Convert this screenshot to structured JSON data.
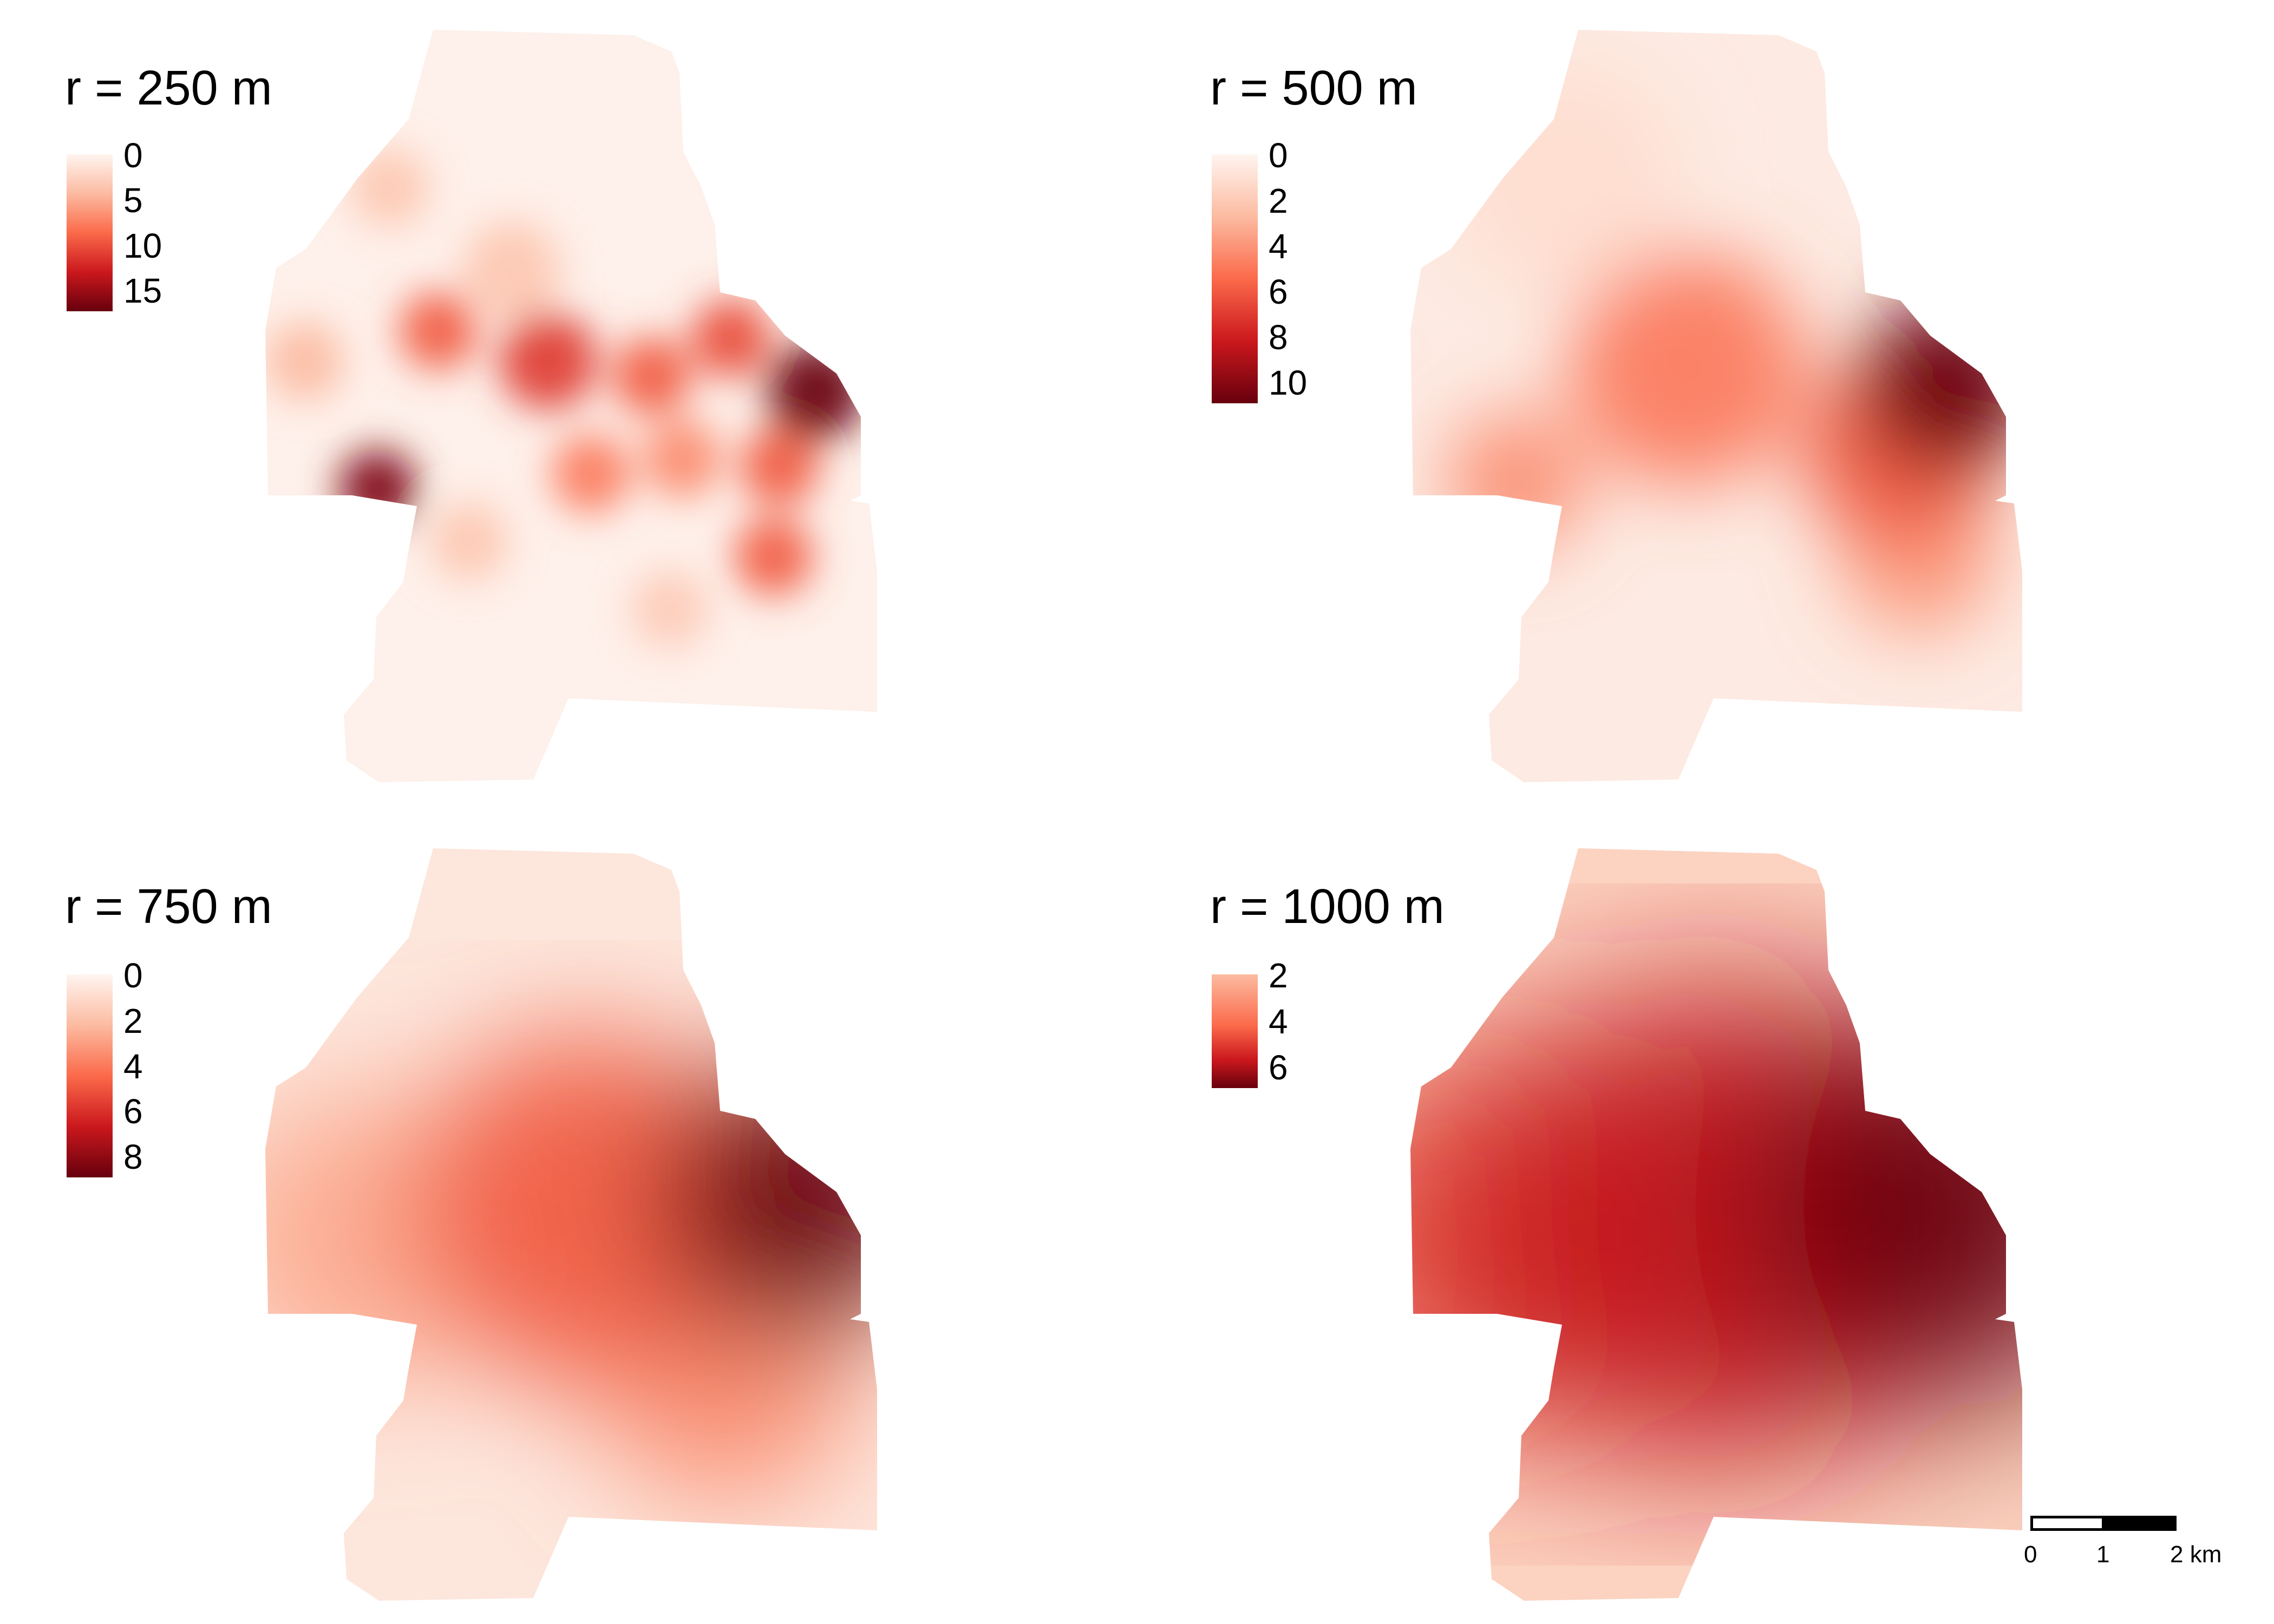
{
  "panels": [
    {
      "title": "r = 250 m",
      "radius_m": 250,
      "legend": {
        "labels": [
          "0",
          "5",
          "10",
          "15"
        ],
        "min": 0,
        "max": 17
      },
      "hotspots": [
        {
          "place": "central-east cluster",
          "fx": 0.9,
          "fy": 0.48,
          "intensity": 1.0,
          "spread": 0.05
        },
        {
          "place": "south-west corner",
          "fx": 0.18,
          "fy": 0.61,
          "intensity": 0.95,
          "spread": 0.04
        },
        {
          "place": "centre",
          "fx": 0.46,
          "fy": 0.44,
          "intensity": 0.65,
          "spread": 0.05
        },
        {
          "place": "west-centre",
          "fx": 0.28,
          "fy": 0.4,
          "intensity": 0.55,
          "spread": 0.04
        },
        {
          "place": "east-centre",
          "fx": 0.63,
          "fy": 0.46,
          "intensity": 0.55,
          "spread": 0.04
        },
        {
          "place": "east-centre",
          "fx": 0.76,
          "fy": 0.41,
          "intensity": 0.6,
          "spread": 0.04
        },
        {
          "place": "east",
          "fx": 0.84,
          "fy": 0.58,
          "intensity": 0.55,
          "spread": 0.04
        },
        {
          "place": "south-east",
          "fx": 0.83,
          "fy": 0.7,
          "intensity": 0.55,
          "spread": 0.04
        },
        {
          "place": "centre-south",
          "fx": 0.53,
          "fy": 0.59,
          "intensity": 0.45,
          "spread": 0.04
        },
        {
          "place": "centre-south",
          "fx": 0.68,
          "fy": 0.57,
          "intensity": 0.4,
          "spread": 0.04
        },
        {
          "place": "west",
          "fx": 0.06,
          "fy": 0.44,
          "intensity": 0.25,
          "spread": 0.04
        },
        {
          "place": "north",
          "fx": 0.2,
          "fy": 0.21,
          "intensity": 0.2,
          "spread": 0.04
        },
        {
          "place": "south",
          "fx": 0.33,
          "fy": 0.68,
          "intensity": 0.2,
          "spread": 0.04
        },
        {
          "place": "south",
          "fx": 0.66,
          "fy": 0.77,
          "intensity": 0.18,
          "spread": 0.04
        },
        {
          "place": "centre",
          "fx": 0.4,
          "fy": 0.32,
          "intensity": 0.2,
          "spread": 0.05
        }
      ]
    },
    {
      "title": "r = 500 m",
      "radius_m": 500,
      "legend": {
        "labels": [
          "0",
          "2",
          "4",
          "6",
          "8",
          "10"
        ],
        "min": 0,
        "max": 10.5
      },
      "hotspots": [
        {
          "place": "east",
          "fx": 0.88,
          "fy": 0.47,
          "intensity": 1.0,
          "spread": 0.09
        },
        {
          "place": "east-centre",
          "fx": 0.8,
          "fy": 0.56,
          "intensity": 0.55,
          "spread": 0.1
        },
        {
          "place": "centre",
          "fx": 0.45,
          "fy": 0.45,
          "intensity": 0.45,
          "spread": 0.12
        },
        {
          "place": "south-west",
          "fx": 0.17,
          "fy": 0.6,
          "intensity": 0.4,
          "spread": 0.07
        },
        {
          "place": "south-east",
          "fx": 0.83,
          "fy": 0.7,
          "intensity": 0.35,
          "spread": 0.08
        },
        {
          "place": "north",
          "fx": 0.25,
          "fy": 0.2,
          "intensity": 0.1,
          "spread": 0.12
        }
      ]
    },
    {
      "title": "r = 750 m",
      "radius_m": 750,
      "legend": {
        "labels": [
          "0",
          "2",
          "4",
          "6",
          "8"
        ],
        "min": 0,
        "max": 8.5
      },
      "hotspots": [
        {
          "place": "east",
          "fx": 0.87,
          "fy": 0.47,
          "intensity": 1.0,
          "spread": 0.14
        },
        {
          "place": "centre",
          "fx": 0.52,
          "fy": 0.48,
          "intensity": 0.55,
          "spread": 0.18
        },
        {
          "place": "west",
          "fx": 0.15,
          "fy": 0.52,
          "intensity": 0.3,
          "spread": 0.15
        },
        {
          "place": "south-east",
          "fx": 0.75,
          "fy": 0.7,
          "intensity": 0.4,
          "spread": 0.13
        }
      ]
    },
    {
      "title": "r = 1000 m",
      "radius_m": 1000,
      "legend": {
        "labels": [
          "2",
          "4",
          "6"
        ],
        "min": 1,
        "max": 7.2
      },
      "hotspots": [
        {
          "place": "east",
          "fx": 0.86,
          "fy": 0.48,
          "intensity": 1.0,
          "spread": 0.2
        },
        {
          "place": "centre",
          "fx": 0.5,
          "fy": 0.5,
          "intensity": 0.65,
          "spread": 0.25
        },
        {
          "place": "west",
          "fx": 0.15,
          "fy": 0.52,
          "intensity": 0.45,
          "spread": 0.2
        }
      ]
    }
  ],
  "scale_bar": {
    "labels": [
      "0",
      "1",
      "2 km"
    ]
  },
  "colors": {
    "ramp": [
      "#fff5f0",
      "#fcbba1",
      "#fb6a4a",
      "#cb181d",
      "#67000d"
    ]
  }
}
